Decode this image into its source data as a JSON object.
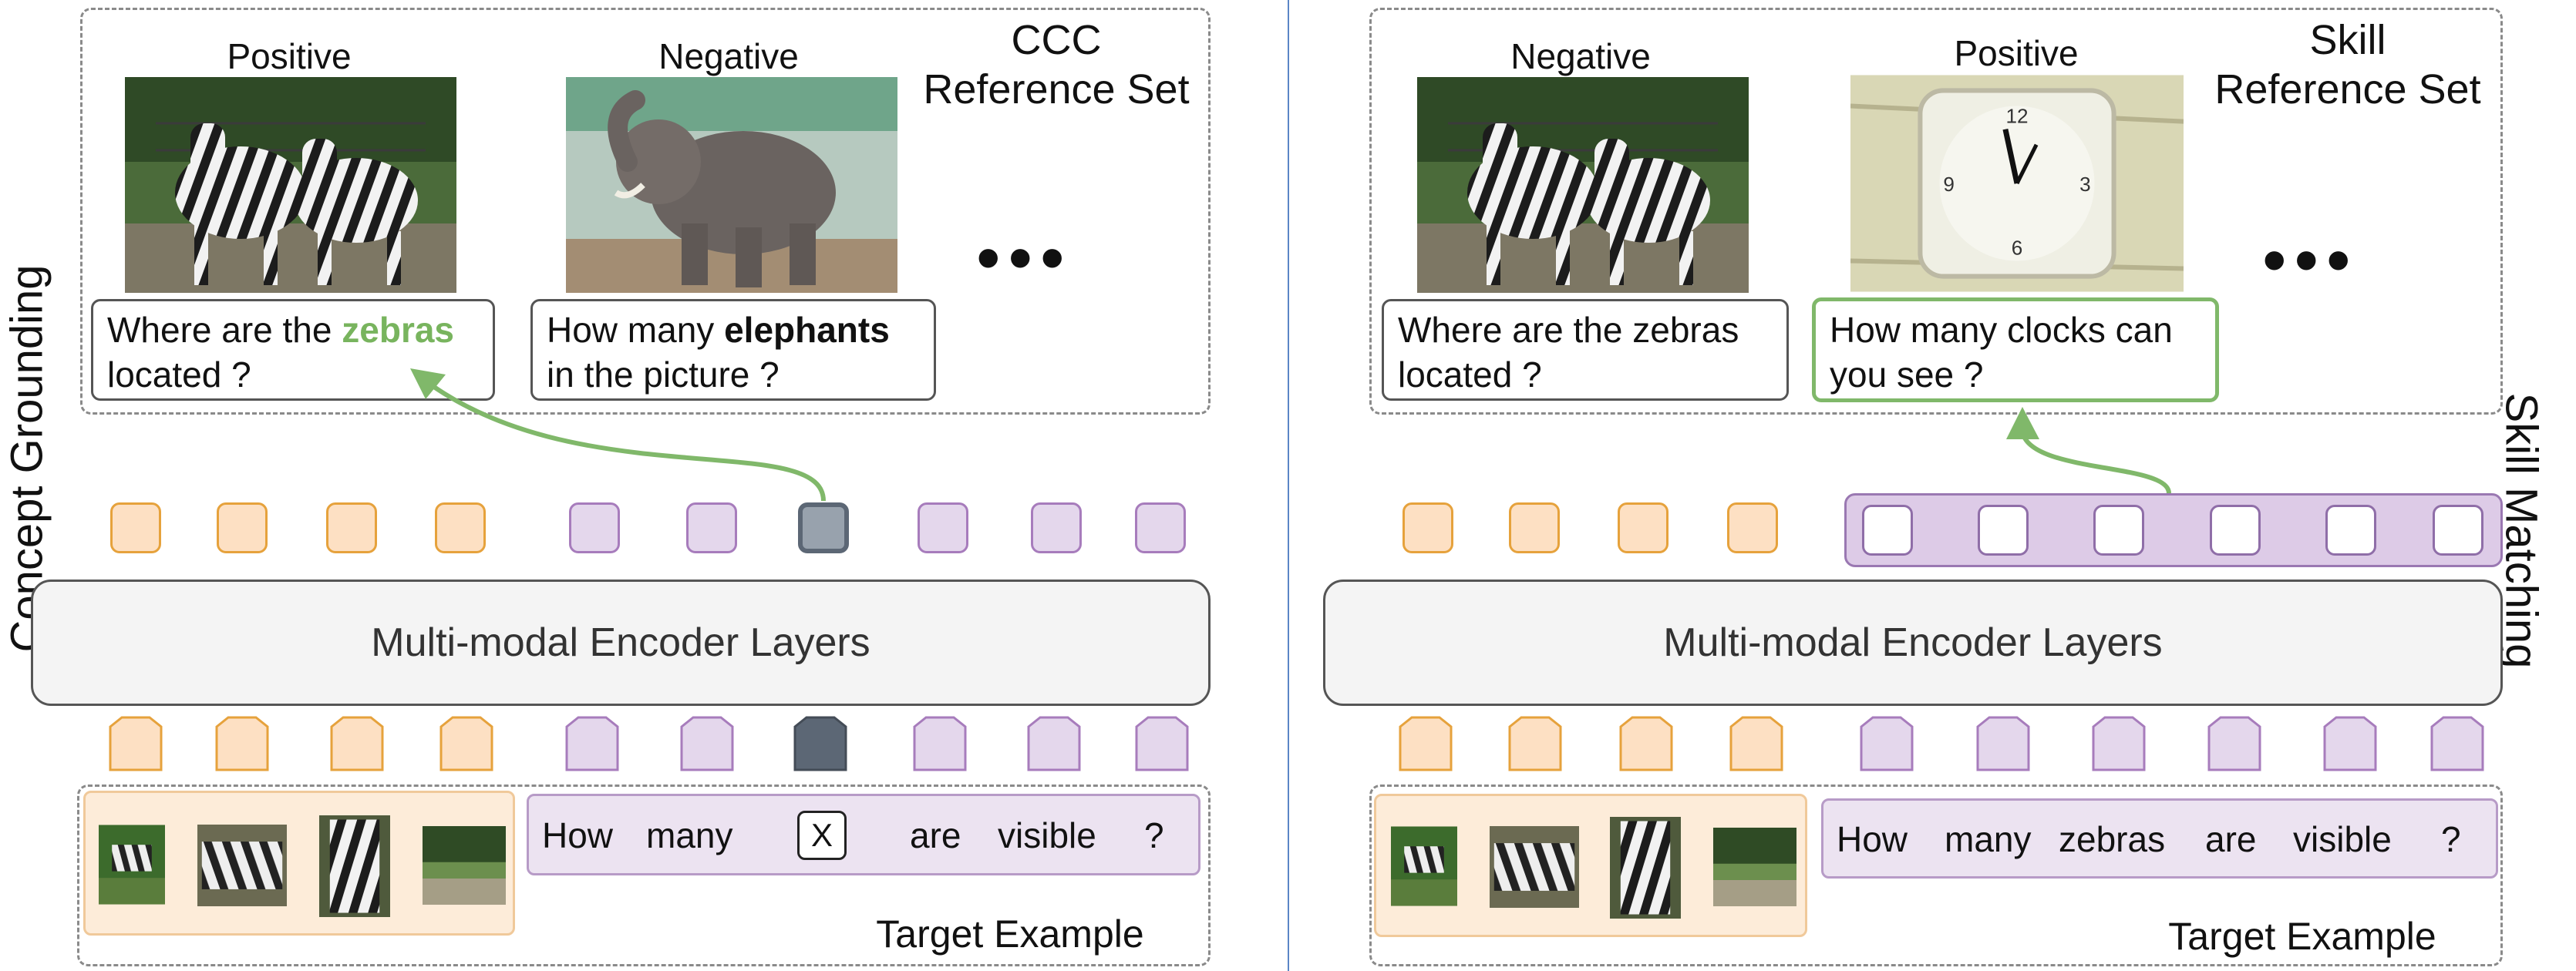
{
  "left_panel": {
    "title": "Concept Grounding",
    "ref_set_line1": "CCC",
    "ref_set_line2": "Reference Set",
    "examples": [
      {
        "label": "Positive",
        "q1_pre": "Where are the ",
        "q1_hl": "zebras",
        "q2": "located ?"
      },
      {
        "label": "Negative",
        "q1_pre": "How many ",
        "q1_hl": "elephants",
        "q2": "in the picture ?"
      }
    ],
    "ellipsis": "•••",
    "encoder": "Multi-modal Encoder Layers",
    "target_words": [
      "How",
      "many",
      "are",
      "visible",
      "?"
    ],
    "mask_token": "X",
    "target_label": "Target Example"
  },
  "right_panel": {
    "title": "Skill Matching",
    "ref_set_line1": "Skill",
    "ref_set_line2": "Reference Set",
    "examples": [
      {
        "label": "Negative",
        "q1": "Where are the zebras",
        "q2": "located ?"
      },
      {
        "label": "Positive",
        "q1": "How many clocks can",
        "q2": "you see ?"
      }
    ],
    "ellipsis": "•••",
    "encoder": "Multi-modal Encoder Layers",
    "target_words": [
      "How",
      "many",
      "zebras",
      "are",
      "visible",
      "?"
    ],
    "target_label": "Target Example"
  },
  "colors": {
    "image_token": "#fde0c3",
    "text_token": "#e4d7ec",
    "masked_token": "#5c6775",
    "arrow": "#80b86a"
  }
}
